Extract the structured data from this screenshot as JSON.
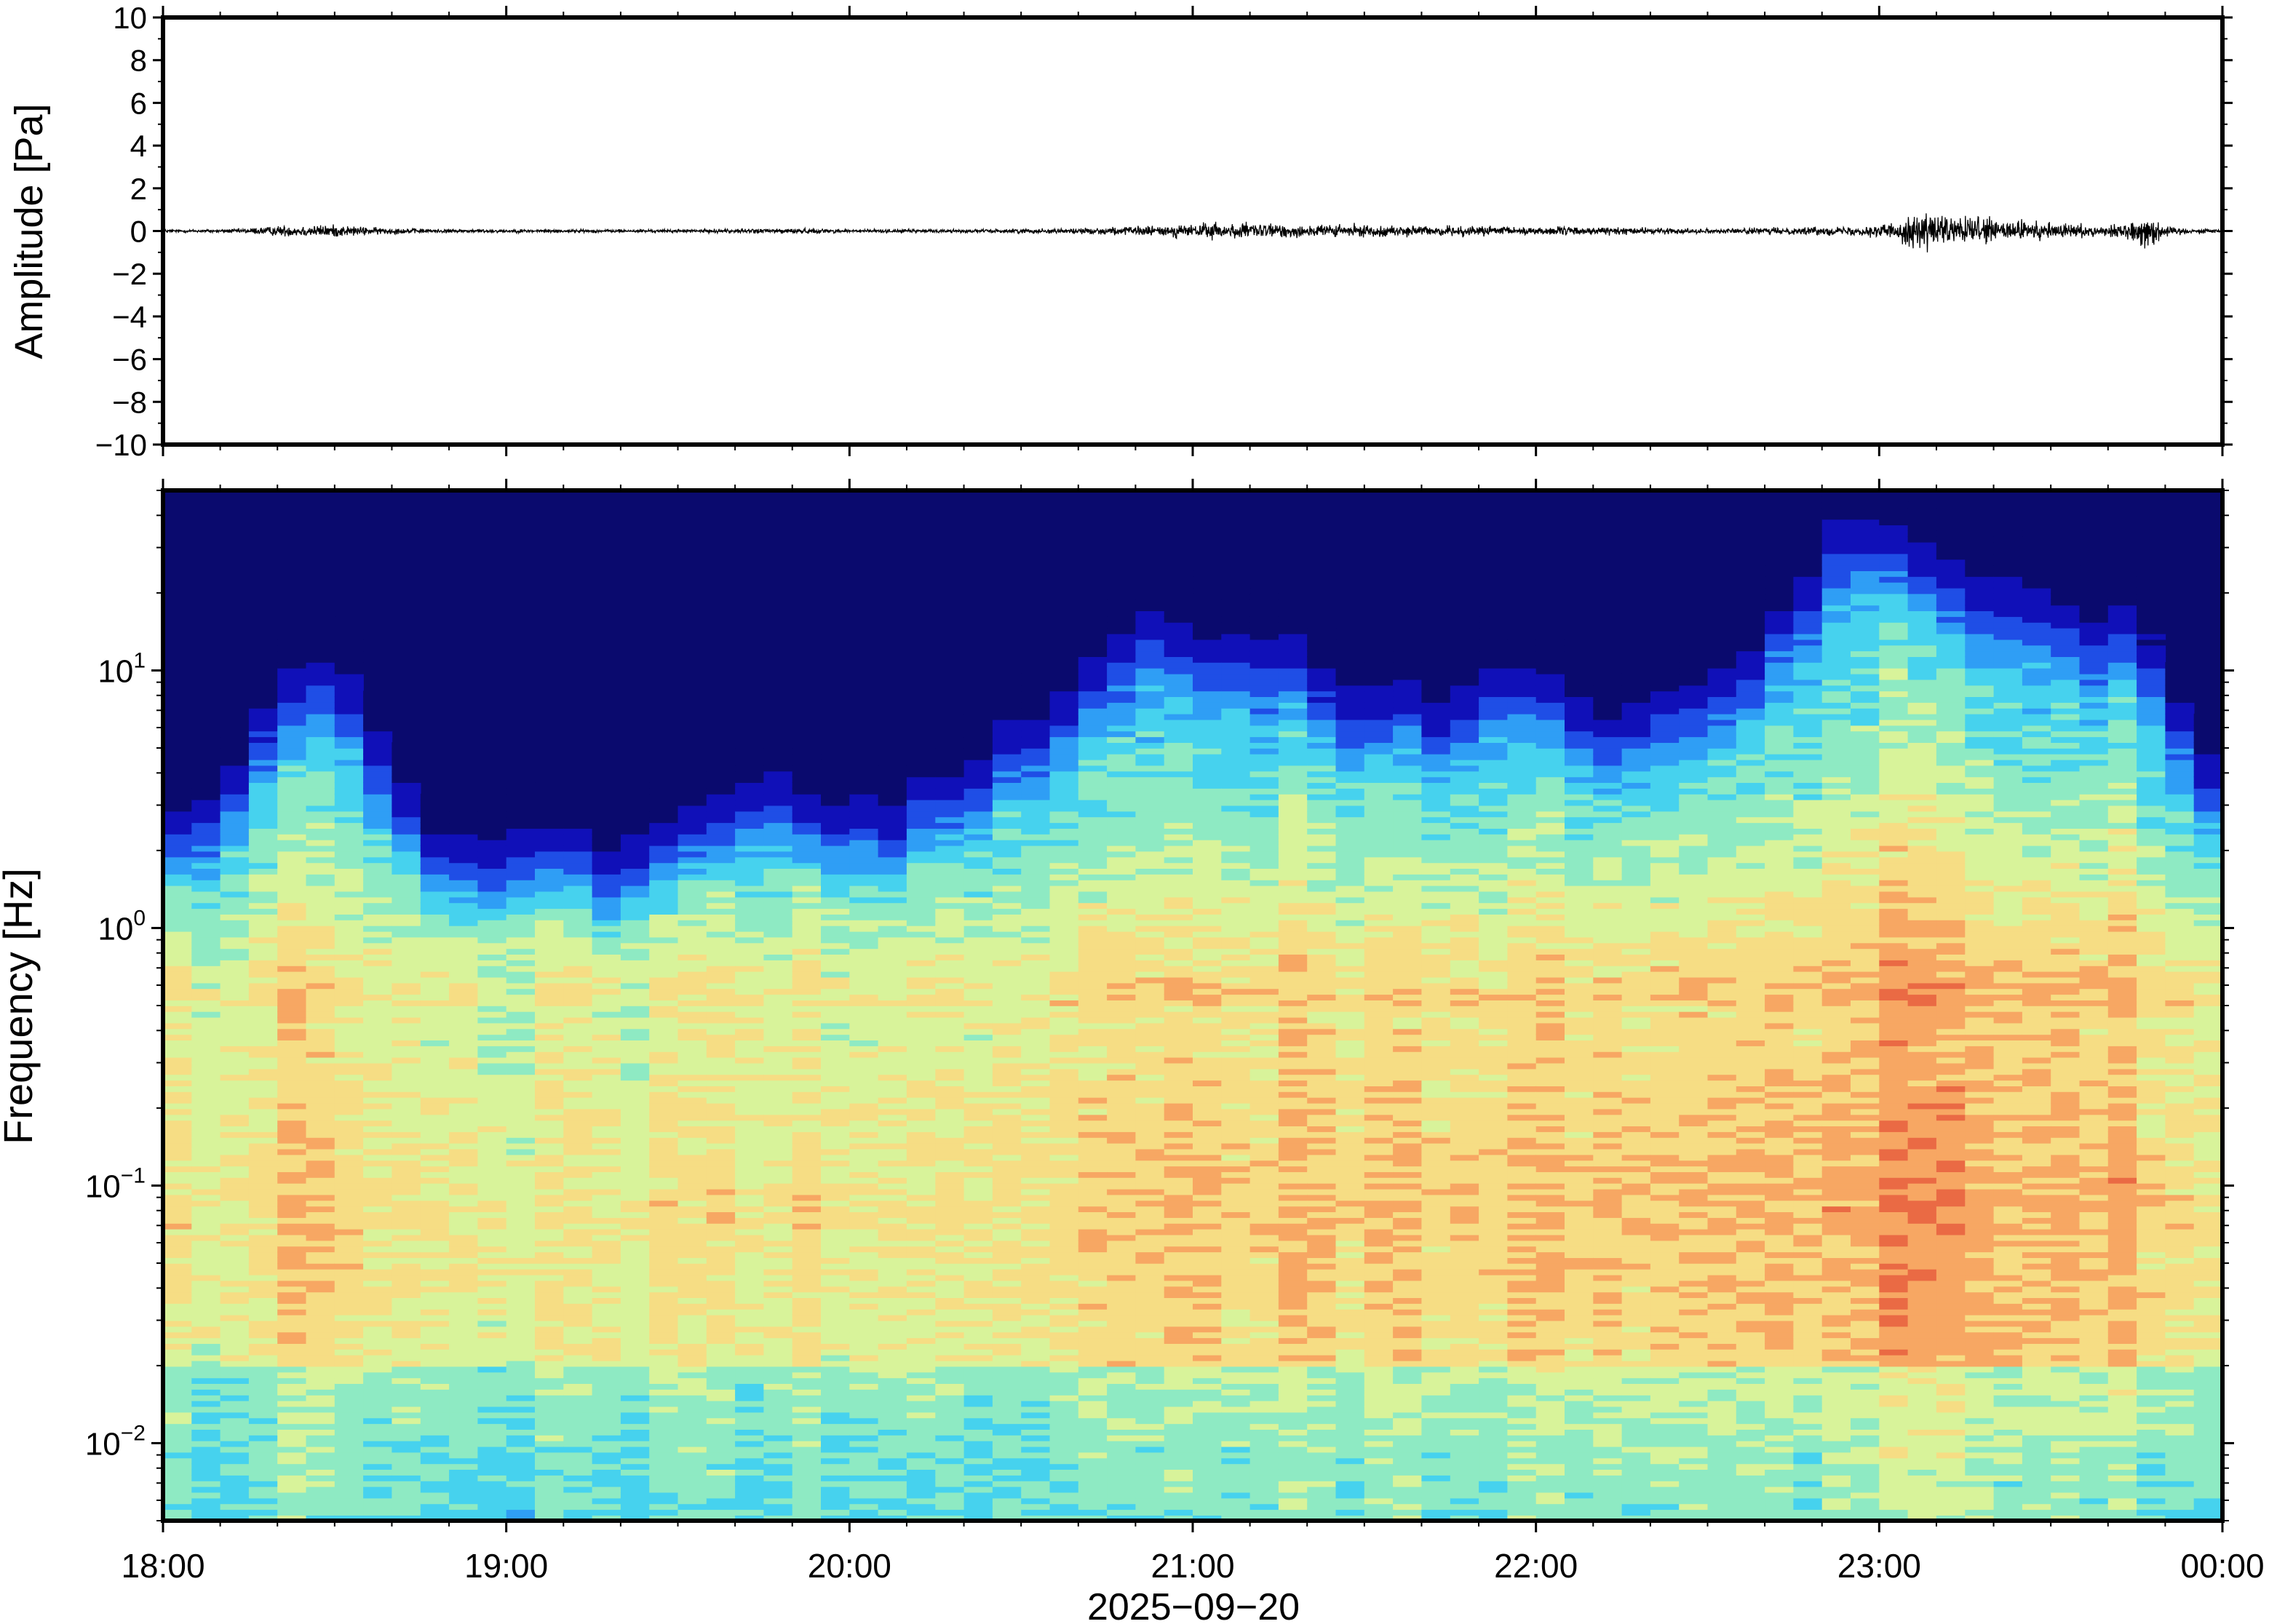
{
  "chart_data": [
    {
      "type": "line",
      "ylabel": "Amplitude [Pa]",
      "xlabel": "",
      "ylim": [
        -10,
        10
      ],
      "yticks": [
        10,
        8,
        6,
        4,
        2,
        0,
        -2,
        -4,
        -6,
        -8,
        -10
      ],
      "ytick_labels": [
        "10",
        "8",
        "6",
        "4",
        "2",
        "0",
        "−2",
        "−4",
        "−6",
        "−8",
        "−10"
      ],
      "x_range_hours": [
        18,
        24
      ],
      "envelope": {
        "x": [
          18.0,
          18.2,
          18.35,
          18.5,
          18.6,
          18.8,
          19.5,
          19.8,
          20.0,
          20.4,
          20.7,
          20.9,
          21.05,
          21.3,
          21.6,
          21.9,
          22.2,
          22.5,
          22.8,
          22.95,
          23.05,
          23.12,
          23.25,
          23.4,
          23.55,
          23.65,
          23.72,
          23.78,
          23.85,
          24.0
        ],
        "values": [
          0.1,
          0.12,
          0.35,
          0.4,
          0.25,
          0.12,
          0.1,
          0.18,
          0.12,
          0.12,
          0.2,
          0.35,
          0.55,
          0.45,
          0.35,
          0.3,
          0.25,
          0.15,
          0.25,
          0.3,
          0.6,
          1.3,
          0.9,
          0.7,
          0.5,
          0.3,
          0.5,
          1.1,
          0.25,
          0.1
        ]
      }
    },
    {
      "type": "heatmap",
      "ylabel": "Frequency [Hz]",
      "xlabel": "2025−09−20",
      "y_scale": "log",
      "ylim": [
        0.005,
        50
      ],
      "yticks": [
        {
          "value": 10,
          "base": "10",
          "exp": "1"
        },
        {
          "value": 1,
          "base": "10",
          "exp": "0"
        },
        {
          "value": 0.1,
          "base": "10",
          "exp": "−1"
        },
        {
          "value": 0.01,
          "base": "10",
          "exp": "−2"
        }
      ],
      "x_range_hours": [
        18,
        24
      ],
      "xticks": [
        {
          "value": 18,
          "label": "18:00"
        },
        {
          "value": 19,
          "label": "19:00"
        },
        {
          "value": 20,
          "label": "20:00"
        },
        {
          "value": 21,
          "label": "21:00"
        },
        {
          "value": 22,
          "label": "22:00"
        },
        {
          "value": 23,
          "label": "23:00"
        },
        {
          "value": 24,
          "label": "00:00"
        }
      ],
      "colormap": [
        "#0a0a6e",
        "#1010b8",
        "#1f4ee6",
        "#2f9ef5",
        "#46d2ee",
        "#8eeac3",
        "#d8f39a",
        "#f6dd84",
        "#f7a763",
        "#ea6a44"
      ],
      "time_columns": 72,
      "energy_profile": [
        0.35,
        0.37,
        0.45,
        0.55,
        0.6,
        0.62,
        0.58,
        0.48,
        0.36,
        0.3,
        0.27,
        0.28,
        0.3,
        0.3,
        0.28,
        0.26,
        0.28,
        0.3,
        0.33,
        0.35,
        0.38,
        0.4,
        0.38,
        0.36,
        0.35,
        0.36,
        0.38,
        0.42,
        0.46,
        0.5,
        0.54,
        0.6,
        0.66,
        0.7,
        0.72,
        0.72,
        0.7,
        0.7,
        0.68,
        0.66,
        0.62,
        0.6,
        0.58,
        0.56,
        0.56,
        0.58,
        0.6,
        0.62,
        0.6,
        0.56,
        0.54,
        0.56,
        0.58,
        0.6,
        0.62,
        0.65,
        0.72,
        0.8,
        0.88,
        0.92,
        0.9,
        0.86,
        0.82,
        0.8,
        0.78,
        0.76,
        0.74,
        0.72,
        0.75,
        0.7,
        0.55,
        0.45
      ]
    }
  ]
}
